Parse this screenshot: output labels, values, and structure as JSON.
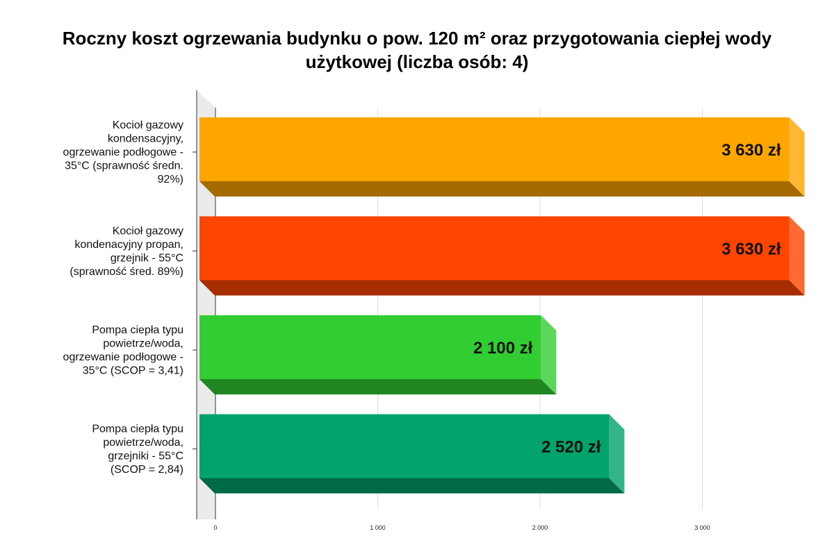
{
  "chart_data": {
    "type": "bar",
    "orientation": "horizontal",
    "title": "Roczny koszt ogrzewania budynku o pow. 120 m² oraz przygotowania ciepłej wody użytkowej (liczba osób: 4)",
    "categories": [
      [
        "Kocioł gazowy",
        "kondensacyjny,",
        "ogrzewanie podłogowe -",
        "35°C (sprawność średn.",
        "92%)"
      ],
      [
        "Kocioł gazowy",
        "kondenacyjny propan,",
        "grzejnik - 55°C",
        "(sprawność śred. 89%)"
      ],
      [
        "Pompa ciepła typu",
        "powietrze/woda,",
        "ogrzewanie podłogowe -",
        "35°C (SCOP = 3,41)"
      ],
      [
        "Pompa ciepła typu",
        "powietrze/woda,",
        "grzejniki - 55°C",
        "(SCOP = 2,84)"
      ]
    ],
    "values": [
      3630,
      3630,
      2100,
      2520
    ],
    "data_labels": [
      "3 630 zł",
      "3 630 zł",
      "2 100 zł",
      "2 520 zł"
    ],
    "colors": [
      "#FFA500",
      "#FF4500",
      "#32CD32",
      "#00A36C"
    ],
    "xlim": [
      0,
      3630
    ],
    "ticks": [
      0,
      1000,
      2000,
      3000
    ],
    "tick_labels": [
      "0",
      "1 000",
      "2 000",
      "3 000"
    ],
    "grid": true,
    "style": "3d"
  }
}
